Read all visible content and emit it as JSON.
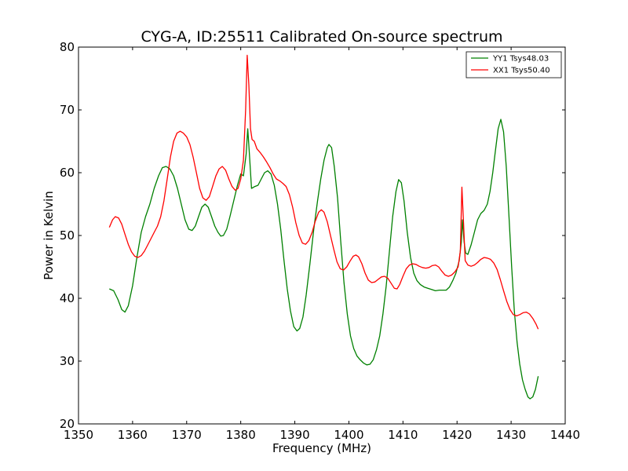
{
  "chart_data": {
    "type": "line",
    "title": "CYG-A, ID:25511 Calibrated On-source spectrum",
    "xlabel": "Frequency (MHz)",
    "ylabel": "Power in Kelvin",
    "xlim": [
      1350,
      1440
    ],
    "ylim": [
      20,
      80
    ],
    "xticks": [
      1350,
      1360,
      1370,
      1380,
      1390,
      1400,
      1410,
      1420,
      1430,
      1440
    ],
    "yticks": [
      20,
      30,
      40,
      50,
      60,
      70,
      80
    ],
    "legend_position": "top-right",
    "grid": false,
    "series": [
      {
        "name": "YY1 Tsys48.03",
        "color": "#008000",
        "points": [
          [
            1355.7,
            41.5
          ],
          [
            1356.5,
            41.2
          ],
          [
            1357.3,
            39.8
          ],
          [
            1358.0,
            38.2
          ],
          [
            1358.6,
            37.8
          ],
          [
            1359.2,
            38.8
          ],
          [
            1360.0,
            42.0
          ],
          [
            1360.8,
            46.5
          ],
          [
            1361.6,
            50.5
          ],
          [
            1362.4,
            53.0
          ],
          [
            1363.2,
            55.0
          ],
          [
            1364.0,
            57.5
          ],
          [
            1364.8,
            59.5
          ],
          [
            1365.5,
            60.8
          ],
          [
            1366.2,
            61.0
          ],
          [
            1366.9,
            60.6
          ],
          [
            1367.6,
            59.5
          ],
          [
            1368.3,
            57.5
          ],
          [
            1369.0,
            55.0
          ],
          [
            1369.7,
            52.5
          ],
          [
            1370.4,
            51.0
          ],
          [
            1371.0,
            50.8
          ],
          [
            1371.6,
            51.5
          ],
          [
            1372.2,
            53.0
          ],
          [
            1372.8,
            54.5
          ],
          [
            1373.4,
            55.0
          ],
          [
            1374.0,
            54.5
          ],
          [
            1374.6,
            53.0
          ],
          [
            1375.2,
            51.5
          ],
          [
            1375.8,
            50.5
          ],
          [
            1376.3,
            49.9
          ],
          [
            1376.8,
            50.0
          ],
          [
            1377.4,
            51.0
          ],
          [
            1378.0,
            53.0
          ],
          [
            1378.7,
            55.5
          ],
          [
            1379.4,
            58.0
          ],
          [
            1380.0,
            59.8
          ],
          [
            1380.5,
            59.5
          ],
          [
            1381.0,
            63.0
          ],
          [
            1381.3,
            67.0
          ],
          [
            1381.6,
            63.0
          ],
          [
            1382.0,
            57.5
          ],
          [
            1382.6,
            57.8
          ],
          [
            1383.2,
            58.0
          ],
          [
            1383.8,
            59.0
          ],
          [
            1384.4,
            60.0
          ],
          [
            1385.0,
            60.3
          ],
          [
            1385.6,
            59.8
          ],
          [
            1386.2,
            58.0
          ],
          [
            1386.8,
            55.0
          ],
          [
            1387.4,
            51.0
          ],
          [
            1388.0,
            46.0
          ],
          [
            1388.6,
            41.5
          ],
          [
            1389.2,
            38.0
          ],
          [
            1389.8,
            35.5
          ],
          [
            1390.4,
            34.8
          ],
          [
            1390.9,
            35.2
          ],
          [
            1391.5,
            37.0
          ],
          [
            1392.1,
            40.5
          ],
          [
            1392.8,
            45.5
          ],
          [
            1393.5,
            51.0
          ],
          [
            1394.2,
            55.5
          ],
          [
            1394.8,
            59.0
          ],
          [
            1395.4,
            62.0
          ],
          [
            1396.0,
            64.0
          ],
          [
            1396.3,
            64.5
          ],
          [
            1396.8,
            64.0
          ],
          [
            1397.3,
            61.0
          ],
          [
            1397.9,
            56.0
          ],
          [
            1398.5,
            49.0
          ],
          [
            1399.1,
            42.5
          ],
          [
            1399.7,
            37.5
          ],
          [
            1400.3,
            34.0
          ],
          [
            1400.9,
            32.0
          ],
          [
            1401.5,
            30.8
          ],
          [
            1402.1,
            30.2
          ],
          [
            1402.7,
            29.7
          ],
          [
            1403.3,
            29.4
          ],
          [
            1403.9,
            29.5
          ],
          [
            1404.5,
            30.2
          ],
          [
            1405.1,
            31.8
          ],
          [
            1405.7,
            34.0
          ],
          [
            1406.3,
            37.5
          ],
          [
            1406.9,
            42.0
          ],
          [
            1407.5,
            47.5
          ],
          [
            1408.1,
            53.0
          ],
          [
            1408.7,
            57.0
          ],
          [
            1409.2,
            58.9
          ],
          [
            1409.7,
            58.4
          ],
          [
            1410.2,
            55.5
          ],
          [
            1410.8,
            50.5
          ],
          [
            1411.4,
            46.5
          ],
          [
            1412.0,
            44.0
          ],
          [
            1412.6,
            42.8
          ],
          [
            1413.2,
            42.2
          ],
          [
            1413.9,
            41.8
          ],
          [
            1414.6,
            41.6
          ],
          [
            1415.3,
            41.4
          ],
          [
            1416.0,
            41.2
          ],
          [
            1416.7,
            41.3
          ],
          [
            1417.4,
            41.3
          ],
          [
            1418.0,
            41.3
          ],
          [
            1418.6,
            41.8
          ],
          [
            1419.2,
            42.8
          ],
          [
            1419.8,
            44.0
          ],
          [
            1420.4,
            46.0
          ],
          [
            1420.8,
            49.0
          ],
          [
            1421.0,
            52.5
          ],
          [
            1421.3,
            49.0
          ],
          [
            1421.6,
            47.2
          ],
          [
            1422.0,
            47.0
          ],
          [
            1422.6,
            48.5
          ],
          [
            1423.2,
            50.5
          ],
          [
            1423.8,
            52.5
          ],
          [
            1424.4,
            53.5
          ],
          [
            1425.0,
            54.0
          ],
          [
            1425.6,
            55.0
          ],
          [
            1426.1,
            57.0
          ],
          [
            1426.6,
            60.0
          ],
          [
            1427.1,
            63.5
          ],
          [
            1427.6,
            67.0
          ],
          [
            1428.1,
            68.5
          ],
          [
            1428.6,
            66.5
          ],
          [
            1429.1,
            61.0
          ],
          [
            1429.6,
            53.0
          ],
          [
            1430.1,
            45.0
          ],
          [
            1430.6,
            38.0
          ],
          [
            1431.1,
            33.0
          ],
          [
            1431.6,
            29.5
          ],
          [
            1432.1,
            27.0
          ],
          [
            1432.6,
            25.5
          ],
          [
            1433.1,
            24.3
          ],
          [
            1433.5,
            24.0
          ],
          [
            1434.0,
            24.3
          ],
          [
            1434.5,
            25.5
          ],
          [
            1435.0,
            27.6
          ]
        ]
      },
      {
        "name": "XX1 Tsys50.40",
        "color": "#ff0000",
        "points": [
          [
            1355.7,
            51.3
          ],
          [
            1356.3,
            52.5
          ],
          [
            1356.8,
            53.0
          ],
          [
            1357.4,
            52.8
          ],
          [
            1358.0,
            51.8
          ],
          [
            1358.6,
            50.2
          ],
          [
            1359.2,
            48.6
          ],
          [
            1359.8,
            47.4
          ],
          [
            1360.4,
            46.7
          ],
          [
            1361.0,
            46.5
          ],
          [
            1361.6,
            46.8
          ],
          [
            1362.2,
            47.5
          ],
          [
            1362.8,
            48.5
          ],
          [
            1363.4,
            49.5
          ],
          [
            1364.0,
            50.5
          ],
          [
            1364.6,
            51.5
          ],
          [
            1365.2,
            53.0
          ],
          [
            1365.8,
            55.5
          ],
          [
            1366.4,
            59.0
          ],
          [
            1367.0,
            62.5
          ],
          [
            1367.6,
            65.0
          ],
          [
            1368.2,
            66.3
          ],
          [
            1368.8,
            66.6
          ],
          [
            1369.4,
            66.3
          ],
          [
            1370.0,
            65.7
          ],
          [
            1370.6,
            64.5
          ],
          [
            1371.2,
            62.5
          ],
          [
            1371.8,
            60.0
          ],
          [
            1372.4,
            57.5
          ],
          [
            1373.0,
            56.0
          ],
          [
            1373.6,
            55.6
          ],
          [
            1374.2,
            56.2
          ],
          [
            1374.8,
            57.8
          ],
          [
            1375.4,
            59.5
          ],
          [
            1376.0,
            60.6
          ],
          [
            1376.6,
            61.0
          ],
          [
            1377.2,
            60.4
          ],
          [
            1377.8,
            59.0
          ],
          [
            1378.4,
            57.8
          ],
          [
            1379.0,
            57.2
          ],
          [
            1379.5,
            57.5
          ],
          [
            1380.0,
            59.0
          ],
          [
            1380.5,
            62.0
          ],
          [
            1380.9,
            70.0
          ],
          [
            1381.2,
            78.7
          ],
          [
            1381.5,
            74.0
          ],
          [
            1381.8,
            67.0
          ],
          [
            1382.1,
            65.3
          ],
          [
            1382.5,
            65.0
          ],
          [
            1383.0,
            63.8
          ],
          [
            1383.6,
            63.2
          ],
          [
            1384.2,
            62.5
          ],
          [
            1384.8,
            61.7
          ],
          [
            1385.4,
            60.8
          ],
          [
            1386.0,
            59.8
          ],
          [
            1386.6,
            59.0
          ],
          [
            1387.2,
            58.7
          ],
          [
            1387.8,
            58.3
          ],
          [
            1388.4,
            57.8
          ],
          [
            1389.0,
            56.5
          ],
          [
            1389.6,
            54.5
          ],
          [
            1390.2,
            52.0
          ],
          [
            1390.8,
            50.0
          ],
          [
            1391.4,
            48.8
          ],
          [
            1392.0,
            48.6
          ],
          [
            1392.6,
            49.2
          ],
          [
            1393.2,
            50.5
          ],
          [
            1393.8,
            52.3
          ],
          [
            1394.4,
            53.7
          ],
          [
            1394.9,
            54.1
          ],
          [
            1395.4,
            53.7
          ],
          [
            1396.0,
            52.2
          ],
          [
            1396.6,
            50.0
          ],
          [
            1397.2,
            47.8
          ],
          [
            1397.8,
            45.8
          ],
          [
            1398.4,
            44.7
          ],
          [
            1399.0,
            44.5
          ],
          [
            1399.6,
            45.0
          ],
          [
            1400.2,
            45.9
          ],
          [
            1400.8,
            46.7
          ],
          [
            1401.3,
            46.9
          ],
          [
            1401.8,
            46.6
          ],
          [
            1402.4,
            45.5
          ],
          [
            1403.0,
            44.0
          ],
          [
            1403.6,
            42.9
          ],
          [
            1404.2,
            42.5
          ],
          [
            1404.8,
            42.6
          ],
          [
            1405.4,
            43.0
          ],
          [
            1406.0,
            43.4
          ],
          [
            1406.6,
            43.5
          ],
          [
            1407.2,
            43.2
          ],
          [
            1407.8,
            42.4
          ],
          [
            1408.4,
            41.6
          ],
          [
            1408.9,
            41.5
          ],
          [
            1409.4,
            42.2
          ],
          [
            1410.0,
            43.5
          ],
          [
            1410.6,
            44.7
          ],
          [
            1411.2,
            45.3
          ],
          [
            1411.8,
            45.5
          ],
          [
            1412.4,
            45.4
          ],
          [
            1413.0,
            45.1
          ],
          [
            1413.6,
            44.9
          ],
          [
            1414.2,
            44.8
          ],
          [
            1414.8,
            44.9
          ],
          [
            1415.4,
            45.2
          ],
          [
            1416.0,
            45.3
          ],
          [
            1416.6,
            45.0
          ],
          [
            1417.2,
            44.3
          ],
          [
            1417.8,
            43.7
          ],
          [
            1418.4,
            43.5
          ],
          [
            1419.0,
            43.7
          ],
          [
            1419.6,
            44.2
          ],
          [
            1420.2,
            45.0
          ],
          [
            1420.6,
            47.5
          ],
          [
            1420.9,
            57.7
          ],
          [
            1421.2,
            52.0
          ],
          [
            1421.5,
            46.0
          ],
          [
            1422.0,
            45.3
          ],
          [
            1422.6,
            45.1
          ],
          [
            1423.2,
            45.3
          ],
          [
            1423.8,
            45.7
          ],
          [
            1424.4,
            46.2
          ],
          [
            1425.0,
            46.5
          ],
          [
            1425.6,
            46.4
          ],
          [
            1426.2,
            46.2
          ],
          [
            1426.8,
            45.6
          ],
          [
            1427.4,
            44.6
          ],
          [
            1428.0,
            43.0
          ],
          [
            1428.6,
            41.2
          ],
          [
            1429.2,
            39.5
          ],
          [
            1429.8,
            38.2
          ],
          [
            1430.4,
            37.4
          ],
          [
            1431.0,
            37.2
          ],
          [
            1431.6,
            37.4
          ],
          [
            1432.2,
            37.7
          ],
          [
            1432.8,
            37.8
          ],
          [
            1433.4,
            37.5
          ],
          [
            1434.0,
            36.8
          ],
          [
            1434.6,
            35.9
          ],
          [
            1435.0,
            35.1
          ]
        ]
      }
    ]
  }
}
